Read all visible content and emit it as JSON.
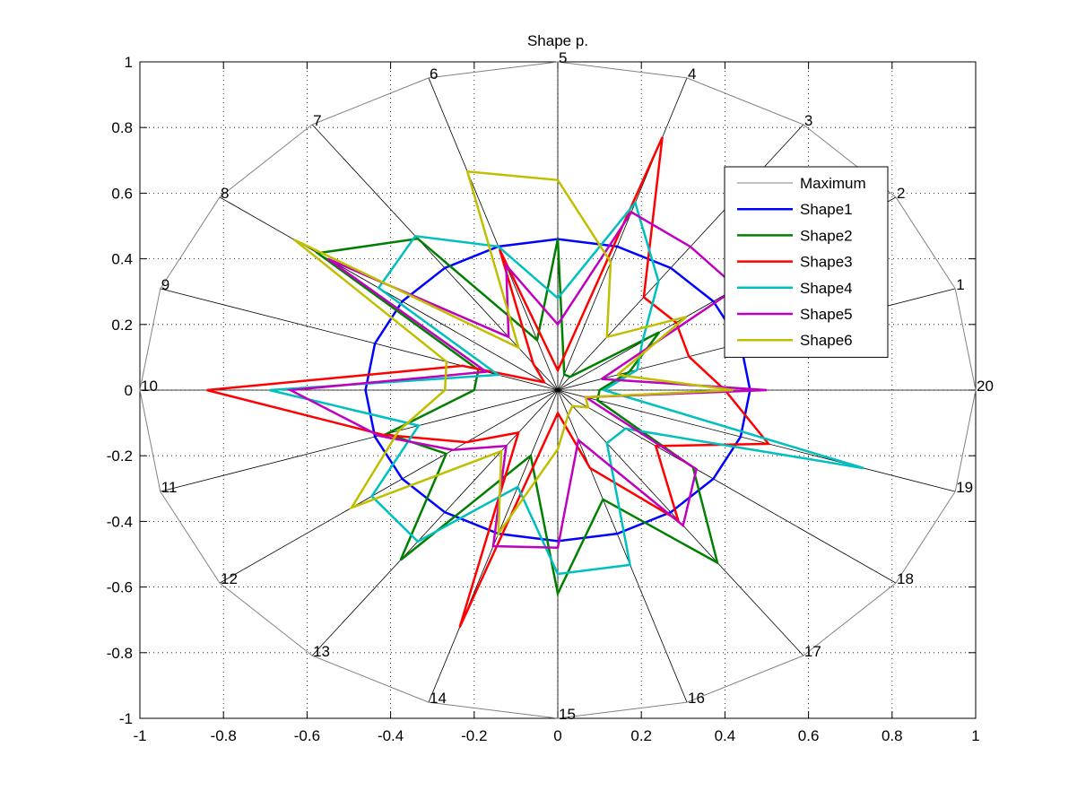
{
  "chart_data": {
    "type": "radar",
    "title": "Shape p.",
    "xlim": [
      -1,
      1
    ],
    "ylim": [
      -1,
      1
    ],
    "xticks": [
      "-1",
      "-0.8",
      "-0.6",
      "-0.4",
      "-0.2",
      "0",
      "0.2",
      "0.4",
      "0.6",
      "0.8",
      "1"
    ],
    "yticks": [
      "-1",
      "-0.8",
      "-0.6",
      "-0.4",
      "-0.2",
      "0",
      "0.2",
      "0.4",
      "0.6",
      "0.8",
      "1"
    ],
    "grid": true,
    "legend_position": "top-right",
    "spoke_labels": [
      "1",
      "2",
      "3",
      "4",
      "5",
      "6",
      "7",
      "8",
      "9",
      "10",
      "11",
      "12",
      "13",
      "14",
      "15",
      "16",
      "17",
      "18",
      "19",
      "20"
    ],
    "series": [
      {
        "name": "Maximum",
        "color": "#808080",
        "width": 1,
        "values": [
          1,
          1,
          1,
          1,
          1,
          1,
          1,
          1,
          1,
          1,
          1,
          1,
          1,
          1,
          1,
          1,
          1,
          1,
          1,
          1
        ]
      },
      {
        "name": "Shape1",
        "color": "#0000ff",
        "width": 2.5,
        "values": [
          0.46,
          0.46,
          0.46,
          0.46,
          0.46,
          0.46,
          0.46,
          0.46,
          0.46,
          0.46,
          0.46,
          0.46,
          0.46,
          0.46,
          0.46,
          0.46,
          0.46,
          0.46,
          0.46,
          0.46
        ]
      },
      {
        "name": "Shape2",
        "color": "#007f00",
        "width": 2.5,
        "values": [
          0.18,
          0.3,
          0.05,
          0.05,
          0.46,
          0.16,
          0.57,
          0.71,
          0.2,
          0.2,
          0.43,
          0.33,
          0.64,
          0.21,
          0.62,
          0.35,
          0.65,
          0.4,
          0.1,
          0.1
        ]
      },
      {
        "name": "Shape3",
        "color": "#ff0000",
        "width": 2.5,
        "values": [
          0.33,
          0.35,
          0.35,
          0.81,
          0.06,
          0.45,
          0.1,
          0.04,
          0.24,
          0.84,
          0.44,
          0.27,
          0.16,
          0.76,
          0.07,
          0.25,
          0.49,
          0.29,
          0.53,
          0.4
        ]
      },
      {
        "name": "Shape4",
        "color": "#00bfbf",
        "width": 2.5,
        "values": [
          0.2,
          0.25,
          0.41,
          0.6,
          0.28,
          0.46,
          0.58,
          0.53,
          0.15,
          0.69,
          0.35,
          0.55,
          0.57,
          0.31,
          0.56,
          0.56,
          0.2,
          0.2,
          0.77,
          0.11
        ]
      },
      {
        "name": "Shape5",
        "color": "#bf00bf",
        "width": 2.5,
        "values": [
          0.11,
          0.53,
          0.54,
          0.57,
          0.2,
          0.4,
          0.2,
          0.68,
          0.18,
          0.64,
          0.45,
          0.31,
          0.21,
          0.5,
          0.48,
          0.16,
          0.51,
          0.41,
          0.07,
          0.5
        ]
      },
      {
        "name": "Shape6",
        "color": "#bfbf00",
        "width": 2.5,
        "values": [
          0.15,
          0.38,
          0.2,
          0.41,
          0.64,
          0.7,
          0.16,
          0.78,
          0.28,
          0.27,
          0.4,
          0.61,
          0.23,
          0.46,
          0.18,
          0.08,
          0.06,
          0.09,
          0.07,
          0.42
        ]
      }
    ]
  }
}
